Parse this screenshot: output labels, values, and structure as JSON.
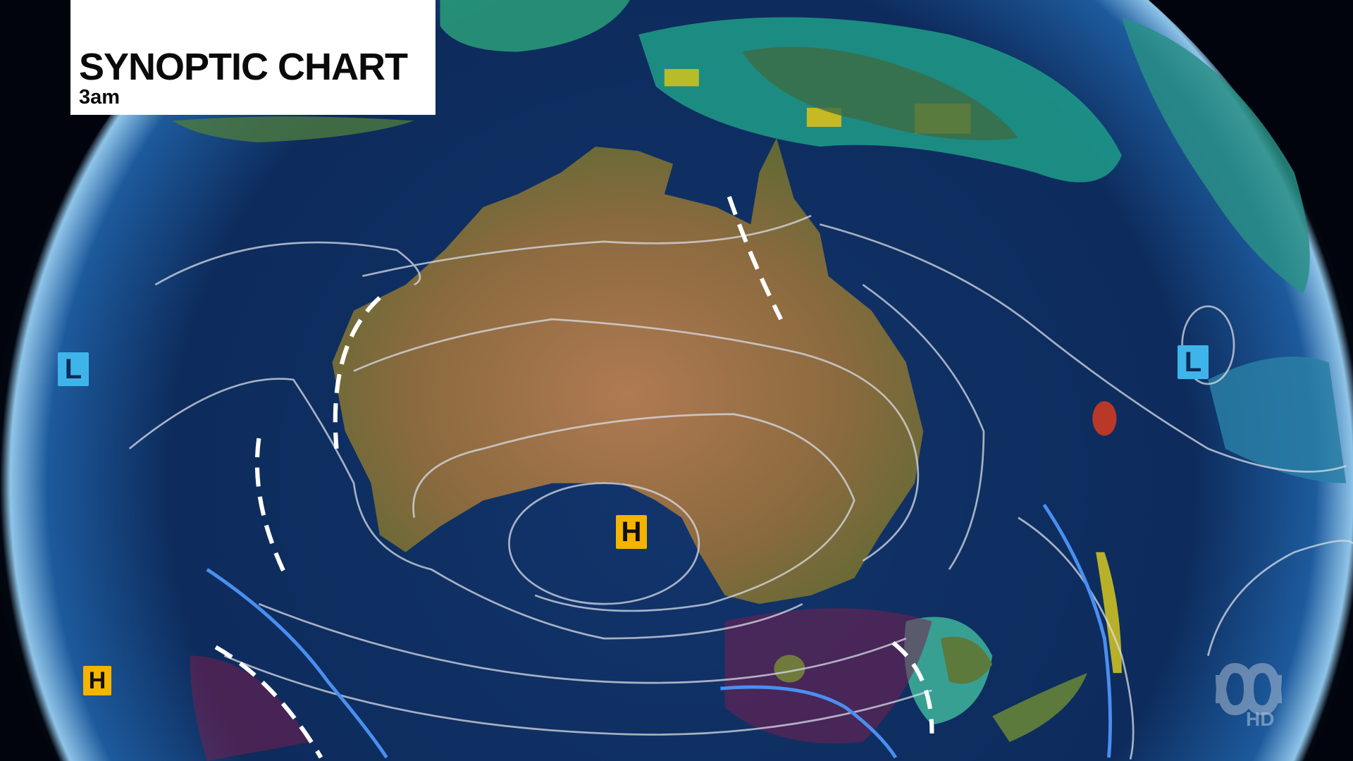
{
  "header": {
    "title": "SYNOPTIC CHART",
    "time": "3am"
  },
  "pressure_systems": [
    {
      "type": "H",
      "label": "H",
      "color": "#f5b400"
    },
    {
      "type": "H",
      "label": "H",
      "color": "#f5b400"
    },
    {
      "type": "L",
      "label": "L",
      "color": "#3fb4ea"
    },
    {
      "type": "L",
      "label": "L",
      "color": "#3fb4ea"
    }
  ],
  "watermark": {
    "brand": "ABC",
    "suffix": "HD"
  },
  "colors": {
    "ocean": "#0d2c5e",
    "land": "#8a6a3e",
    "isobar": "#d8dde6",
    "trough": "#ffffff",
    "cold_front": "#4a8ff0",
    "high": "#f5b400",
    "low": "#3fb4ea"
  }
}
